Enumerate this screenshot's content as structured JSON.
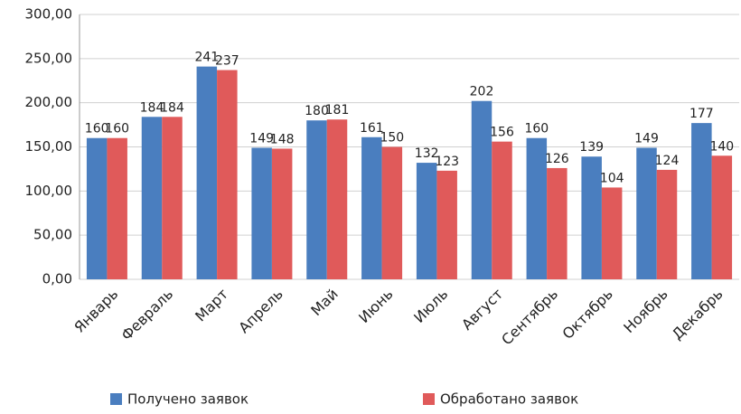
{
  "chart_data": {
    "type": "bar",
    "categories": [
      "Январь",
      "Февраль",
      "Март",
      "Апрель",
      "Май",
      "Июнь",
      "Июль",
      "Август",
      "Сентябрь",
      "Октябрь",
      "Ноябрь",
      "Декабрь"
    ],
    "series": [
      {
        "name": "Получено заявок",
        "color": "#4a7ebf",
        "values": [
          160,
          184,
          241,
          149,
          180,
          161,
          132,
          202,
          160,
          139,
          149,
          177
        ]
      },
      {
        "name": "Обработано заявок",
        "color": "#e05a5a",
        "values": [
          160,
          184,
          237,
          148,
          181,
          150,
          123,
          156,
          126,
          104,
          124,
          140
        ]
      }
    ],
    "ylim": [
      0,
      300
    ],
    "yticks": [
      {
        "value": 0,
        "label": "0,00"
      },
      {
        "value": 50,
        "label": "50,00"
      },
      {
        "value": 100,
        "label": "100,00"
      },
      {
        "value": 150,
        "label": "150,00"
      },
      {
        "value": 200,
        "label": "200,00"
      },
      {
        "value": 250,
        "label": "250,00"
      },
      {
        "value": 300,
        "label": "300,00"
      }
    ],
    "grid": true,
    "legend": "bottom"
  }
}
